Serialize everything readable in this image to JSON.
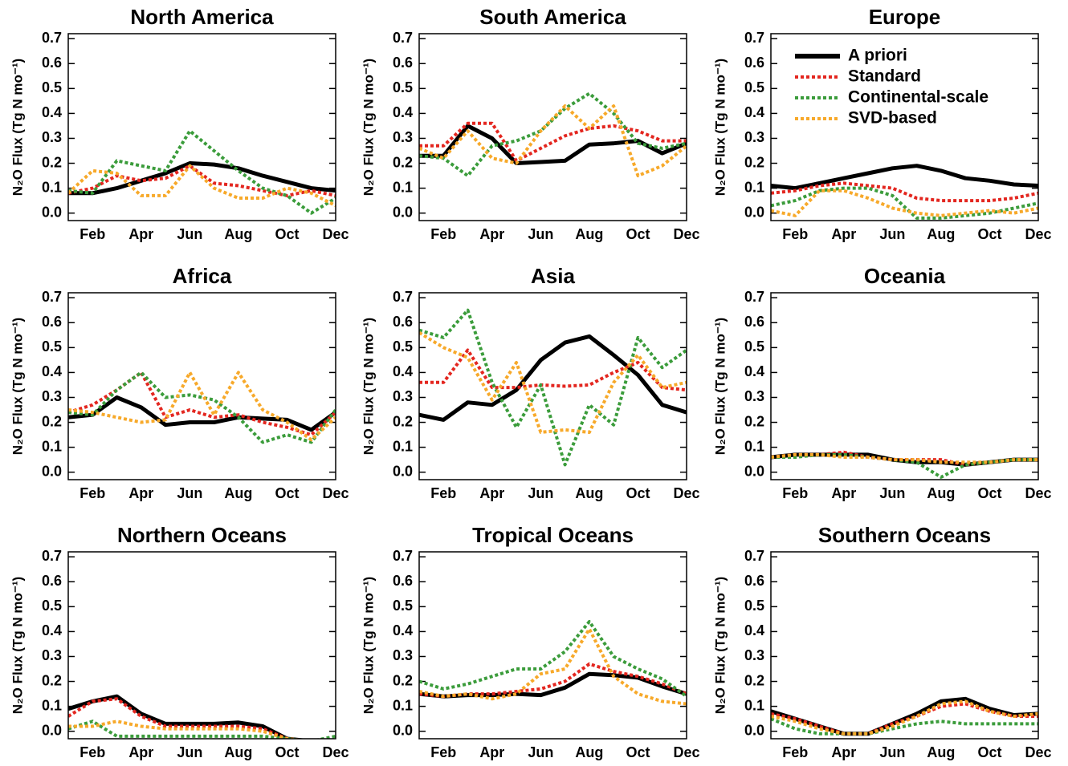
{
  "chart_data": [
    {
      "type": "line",
      "title": "North America",
      "ylabel": "N₂O Flux (Tg N mo⁻¹)",
      "categories": [
        null,
        "Feb",
        null,
        "Apr",
        null,
        "Jun",
        null,
        "Aug",
        null,
        "Oct",
        null,
        "Dec"
      ],
      "ylim": [
        -0.03,
        0.72
      ],
      "yticks": [
        {
          "value": 0,
          "label": "0.0"
        },
        0.1,
        0.2,
        0.3,
        0.4,
        0.5,
        0.6,
        0.7
      ],
      "series": [
        {
          "color": "#000000",
          "linestyle": "solid",
          "values": [
            0.08,
            0.08,
            0.1,
            0.13,
            0.16,
            0.2,
            0.195,
            0.18,
            0.15,
            0.125,
            0.1,
            0.09
          ]
        },
        {
          "color": "#e3261f",
          "linestyle": "dotted",
          "values": [
            0.08,
            0.1,
            0.15,
            0.13,
            0.14,
            0.19,
            0.12,
            0.11,
            0.09,
            0.07,
            0.09,
            0.07
          ]
        },
        {
          "color": "#3b9c3b",
          "linestyle": "dotted",
          "values": [
            0.09,
            0.08,
            0.21,
            0.19,
            0.17,
            0.33,
            0.25,
            0.17,
            0.1,
            0.07,
            0.0,
            0.06
          ]
        },
        {
          "color": "#f7a92a",
          "linestyle": "dotted",
          "values": [
            0.08,
            0.17,
            0.16,
            0.07,
            0.07,
            0.19,
            0.1,
            0.06,
            0.06,
            0.1,
            0.08,
            0.03
          ]
        }
      ]
    },
    {
      "type": "line",
      "title": "South America",
      "ylabel": "N₂O Flux (Tg N mo⁻¹)",
      "categories": [
        null,
        "Feb",
        null,
        "Apr",
        null,
        "Jun",
        null,
        "Aug",
        null,
        "Oct",
        null,
        "Dec"
      ],
      "ylim": [
        -0.03,
        0.72
      ],
      "yticks": [
        {
          "value": 0,
          "label": "0.0"
        },
        0.1,
        0.2,
        0.3,
        0.4,
        0.5,
        0.6,
        0.7
      ],
      "series": [
        {
          "color": "#000000",
          "linestyle": "solid",
          "values": [
            0.23,
            0.23,
            0.35,
            0.3,
            0.2,
            0.205,
            0.21,
            0.275,
            0.28,
            0.29,
            0.24,
            0.28
          ]
        },
        {
          "color": "#e3261f",
          "linestyle": "dotted",
          "values": [
            0.27,
            0.27,
            0.36,
            0.36,
            0.21,
            0.26,
            0.31,
            0.34,
            0.35,
            0.33,
            0.29,
            0.29
          ]
        },
        {
          "color": "#3b9c3b",
          "linestyle": "dotted",
          "values": [
            0.23,
            0.22,
            0.15,
            0.27,
            0.29,
            0.33,
            0.42,
            0.48,
            0.4,
            0.28,
            0.26,
            0.28
          ]
        },
        {
          "color": "#f7a92a",
          "linestyle": "dotted",
          "values": [
            0.26,
            0.22,
            0.33,
            0.22,
            0.2,
            0.33,
            0.43,
            0.34,
            0.43,
            0.15,
            0.19,
            0.27
          ]
        }
      ]
    },
    {
      "type": "line",
      "title": "Europe",
      "ylabel": "N₂O Flux (Tg N mo⁻¹)",
      "legend": "upper left",
      "categories": [
        null,
        "Feb",
        null,
        "Apr",
        null,
        "Jun",
        null,
        "Aug",
        null,
        "Oct",
        null,
        "Dec"
      ],
      "ylim": [
        -0.03,
        0.72
      ],
      "yticks": [
        {
          "value": 0,
          "label": "0.0"
        },
        0.1,
        0.2,
        0.3,
        0.4,
        0.5,
        0.6,
        0.7
      ],
      "series": [
        {
          "name": "A priori",
          "color": "#000000",
          "linestyle": "solid",
          "values": [
            0.11,
            0.1,
            0.12,
            0.14,
            0.16,
            0.18,
            0.19,
            0.17,
            0.14,
            0.13,
            0.115,
            0.11
          ]
        },
        {
          "name": "Standard",
          "color": "#e3261f",
          "linestyle": "dotted",
          "values": [
            0.08,
            0.09,
            0.11,
            0.12,
            0.11,
            0.1,
            0.06,
            0.05,
            0.05,
            0.05,
            0.06,
            0.08
          ]
        },
        {
          "name": "Continental-scale",
          "color": "#3b9c3b",
          "linestyle": "dotted",
          "values": [
            0.03,
            0.05,
            0.09,
            0.1,
            0.1,
            0.07,
            -0.02,
            -0.02,
            -0.01,
            0.0,
            0.02,
            0.04
          ]
        },
        {
          "name": "SVD-based",
          "color": "#f7a92a",
          "linestyle": "dotted",
          "values": [
            0.01,
            -0.01,
            0.09,
            0.09,
            0.06,
            0.02,
            0.0,
            -0.01,
            0.0,
            0.01,
            0.0,
            0.02
          ]
        }
      ]
    },
    {
      "type": "line",
      "title": "Africa",
      "ylabel": "N₂O Flux (Tg N mo⁻¹)",
      "categories": [
        null,
        "Feb",
        null,
        "Apr",
        null,
        "Jun",
        null,
        "Aug",
        null,
        "Oct",
        null,
        "Dec"
      ],
      "ylim": [
        -0.03,
        0.72
      ],
      "yticks": [
        {
          "value": 0,
          "label": "0.0"
        },
        0.1,
        0.2,
        0.3,
        0.4,
        0.5,
        0.6,
        0.7
      ],
      "series": [
        {
          "color": "#000000",
          "linestyle": "solid",
          "values": [
            0.22,
            0.23,
            0.3,
            0.26,
            0.19,
            0.2,
            0.2,
            0.22,
            0.215,
            0.21,
            0.17,
            0.24
          ]
        },
        {
          "color": "#e3261f",
          "linestyle": "dotted",
          "values": [
            0.24,
            0.27,
            0.33,
            0.4,
            0.22,
            0.25,
            0.22,
            0.23,
            0.2,
            0.18,
            0.15,
            0.24
          ]
        },
        {
          "color": "#3b9c3b",
          "linestyle": "dotted",
          "values": [
            0.24,
            0.23,
            0.33,
            0.4,
            0.3,
            0.31,
            0.29,
            0.22,
            0.12,
            0.15,
            0.12,
            0.25
          ]
        },
        {
          "color": "#f7a92a",
          "linestyle": "dotted",
          "values": [
            0.25,
            0.24,
            0.22,
            0.2,
            0.21,
            0.4,
            0.23,
            0.4,
            0.25,
            0.2,
            0.13,
            0.22
          ]
        }
      ]
    },
    {
      "type": "line",
      "title": "Asia",
      "ylabel": "N₂O Flux (Tg N mo⁻¹)",
      "categories": [
        null,
        "Feb",
        null,
        "Apr",
        null,
        "Jun",
        null,
        "Aug",
        null,
        "Oct",
        null,
        "Dec"
      ],
      "ylim": [
        -0.03,
        0.72
      ],
      "yticks": [
        {
          "value": 0,
          "label": "0.0"
        },
        0.1,
        0.2,
        0.3,
        0.4,
        0.5,
        0.6,
        0.7
      ],
      "series": [
        {
          "color": "#000000",
          "linestyle": "solid",
          "values": [
            0.23,
            0.21,
            0.28,
            0.27,
            0.33,
            0.45,
            0.52,
            0.545,
            0.47,
            0.39,
            0.27,
            0.24
          ]
        },
        {
          "color": "#e3261f",
          "linestyle": "dotted",
          "values": [
            0.36,
            0.36,
            0.49,
            0.34,
            0.34,
            0.35,
            0.345,
            0.35,
            0.4,
            0.44,
            0.34,
            0.33
          ]
        },
        {
          "color": "#3b9c3b",
          "linestyle": "dotted",
          "values": [
            0.57,
            0.54,
            0.65,
            0.36,
            0.18,
            0.35,
            0.03,
            0.27,
            0.19,
            0.54,
            0.42,
            0.49
          ]
        },
        {
          "color": "#f7a92a",
          "linestyle": "dotted",
          "values": [
            0.56,
            0.5,
            0.46,
            0.29,
            0.44,
            0.16,
            0.17,
            0.16,
            0.36,
            0.47,
            0.34,
            0.36
          ]
        }
      ]
    },
    {
      "type": "line",
      "title": "Oceania",
      "ylabel": "N₂O Flux (Tg N mo⁻¹)",
      "categories": [
        null,
        "Feb",
        null,
        "Apr",
        null,
        "Jun",
        null,
        "Aug",
        null,
        "Oct",
        null,
        "Dec"
      ],
      "ylim": [
        -0.03,
        0.72
      ],
      "yticks": [
        {
          "value": 0,
          "label": "0.0"
        },
        0.1,
        0.2,
        0.3,
        0.4,
        0.5,
        0.6,
        0.7
      ],
      "series": [
        {
          "color": "#000000",
          "linestyle": "solid",
          "values": [
            0.06,
            0.07,
            0.07,
            0.07,
            0.07,
            0.05,
            0.04,
            0.04,
            0.03,
            0.04,
            0.05,
            0.05
          ]
        },
        {
          "color": "#e3261f",
          "linestyle": "dotted",
          "values": [
            0.06,
            0.07,
            0.07,
            0.08,
            0.06,
            0.05,
            0.05,
            0.05,
            0.03,
            0.04,
            0.05,
            0.05
          ]
        },
        {
          "color": "#3b9c3b",
          "linestyle": "dotted",
          "values": [
            0.06,
            0.06,
            0.07,
            0.07,
            0.06,
            0.05,
            0.04,
            -0.02,
            0.03,
            0.04,
            0.05,
            0.05
          ]
        },
        {
          "color": "#f7a92a",
          "linestyle": "dotted",
          "values": [
            0.06,
            0.07,
            0.07,
            0.06,
            0.06,
            0.05,
            0.05,
            0.04,
            0.04,
            0.04,
            0.05,
            0.05
          ]
        }
      ]
    },
    {
      "type": "line",
      "title": "Northern Oceans",
      "ylabel": "N₂O Flux (Tg N mo⁻¹)",
      "categories": [
        null,
        "Feb",
        null,
        "Apr",
        null,
        "Jun",
        null,
        "Aug",
        null,
        "Oct",
        null,
        "Dec"
      ],
      "ylim": [
        -0.03,
        0.72
      ],
      "yticks": [
        {
          "value": 0,
          "label": "0.0"
        },
        0.1,
        0.2,
        0.3,
        0.4,
        0.5,
        0.6,
        0.7
      ],
      "series": [
        {
          "color": "#000000",
          "linestyle": "solid",
          "values": [
            0.09,
            0.12,
            0.14,
            0.07,
            0.03,
            0.03,
            0.03,
            0.035,
            0.02,
            -0.03,
            -0.04,
            -0.04
          ]
        },
        {
          "color": "#e3261f",
          "linestyle": "dotted",
          "values": [
            0.06,
            0.12,
            0.13,
            0.06,
            0.02,
            0.02,
            0.02,
            0.02,
            0.01,
            -0.03,
            -0.04,
            -0.04
          ]
        },
        {
          "color": "#3b9c3b",
          "linestyle": "dotted",
          "values": [
            0.01,
            0.04,
            -0.02,
            -0.02,
            -0.02,
            -0.02,
            -0.02,
            -0.02,
            -0.02,
            -0.03,
            -0.04,
            -0.02
          ]
        },
        {
          "color": "#f7a92a",
          "linestyle": "dotted",
          "values": [
            0.02,
            0.02,
            0.04,
            0.02,
            0.01,
            0.01,
            0.01,
            0.01,
            0.0,
            -0.03,
            -0.04,
            -0.04
          ]
        }
      ]
    },
    {
      "type": "line",
      "title": "Tropical Oceans",
      "ylabel": "N₂O Flux (Tg N mo⁻¹)",
      "categories": [
        null,
        "Feb",
        null,
        "Apr",
        null,
        "Jun",
        null,
        "Aug",
        null,
        "Oct",
        null,
        "Dec"
      ],
      "ylim": [
        -0.03,
        0.72
      ],
      "yticks": [
        {
          "value": 0,
          "label": "0.0"
        },
        0.1,
        0.2,
        0.3,
        0.4,
        0.5,
        0.6,
        0.7
      ],
      "series": [
        {
          "color": "#000000",
          "linestyle": "solid",
          "values": [
            0.15,
            0.14,
            0.145,
            0.145,
            0.15,
            0.145,
            0.175,
            0.23,
            0.225,
            0.215,
            0.18,
            0.15
          ]
        },
        {
          "color": "#e3261f",
          "linestyle": "dotted",
          "values": [
            0.15,
            0.14,
            0.15,
            0.15,
            0.16,
            0.17,
            0.2,
            0.27,
            0.24,
            0.22,
            0.19,
            0.15
          ]
        },
        {
          "color": "#3b9c3b",
          "linestyle": "dotted",
          "values": [
            0.2,
            0.17,
            0.19,
            0.22,
            0.25,
            0.25,
            0.32,
            0.44,
            0.3,
            0.25,
            0.21,
            0.14
          ]
        },
        {
          "color": "#f7a92a",
          "linestyle": "dotted",
          "values": [
            0.16,
            0.14,
            0.15,
            0.13,
            0.15,
            0.23,
            0.25,
            0.41,
            0.22,
            0.15,
            0.12,
            0.11
          ]
        }
      ]
    },
    {
      "type": "line",
      "title": "Southern Oceans",
      "ylabel": "N₂O Flux (Tg N mo⁻¹)",
      "categories": [
        null,
        "Feb",
        null,
        "Apr",
        null,
        "Jun",
        null,
        "Aug",
        null,
        "Oct",
        null,
        "Dec"
      ],
      "ylim": [
        -0.03,
        0.72
      ],
      "yticks": [
        {
          "value": 0,
          "label": "0.0"
        },
        0.1,
        0.2,
        0.3,
        0.4,
        0.5,
        0.6,
        0.7
      ],
      "series": [
        {
          "color": "#000000",
          "linestyle": "solid",
          "values": [
            0.08,
            0.05,
            0.02,
            -0.01,
            -0.01,
            0.03,
            0.07,
            0.12,
            0.13,
            0.09,
            0.065,
            0.07
          ]
        },
        {
          "color": "#e3261f",
          "linestyle": "dotted",
          "values": [
            0.07,
            0.05,
            0.02,
            -0.01,
            -0.01,
            0.03,
            0.06,
            0.1,
            0.11,
            0.08,
            0.06,
            0.06
          ]
        },
        {
          "color": "#3b9c3b",
          "linestyle": "dotted",
          "values": [
            0.05,
            0.01,
            -0.01,
            -0.01,
            -0.01,
            0.01,
            0.03,
            0.04,
            0.03,
            0.03,
            0.03,
            0.03
          ]
        },
        {
          "color": "#f7a92a",
          "linestyle": "dotted",
          "values": [
            0.06,
            0.04,
            0.01,
            -0.01,
            -0.01,
            0.02,
            0.06,
            0.11,
            0.12,
            0.08,
            0.06,
            0.07
          ]
        }
      ]
    }
  ]
}
